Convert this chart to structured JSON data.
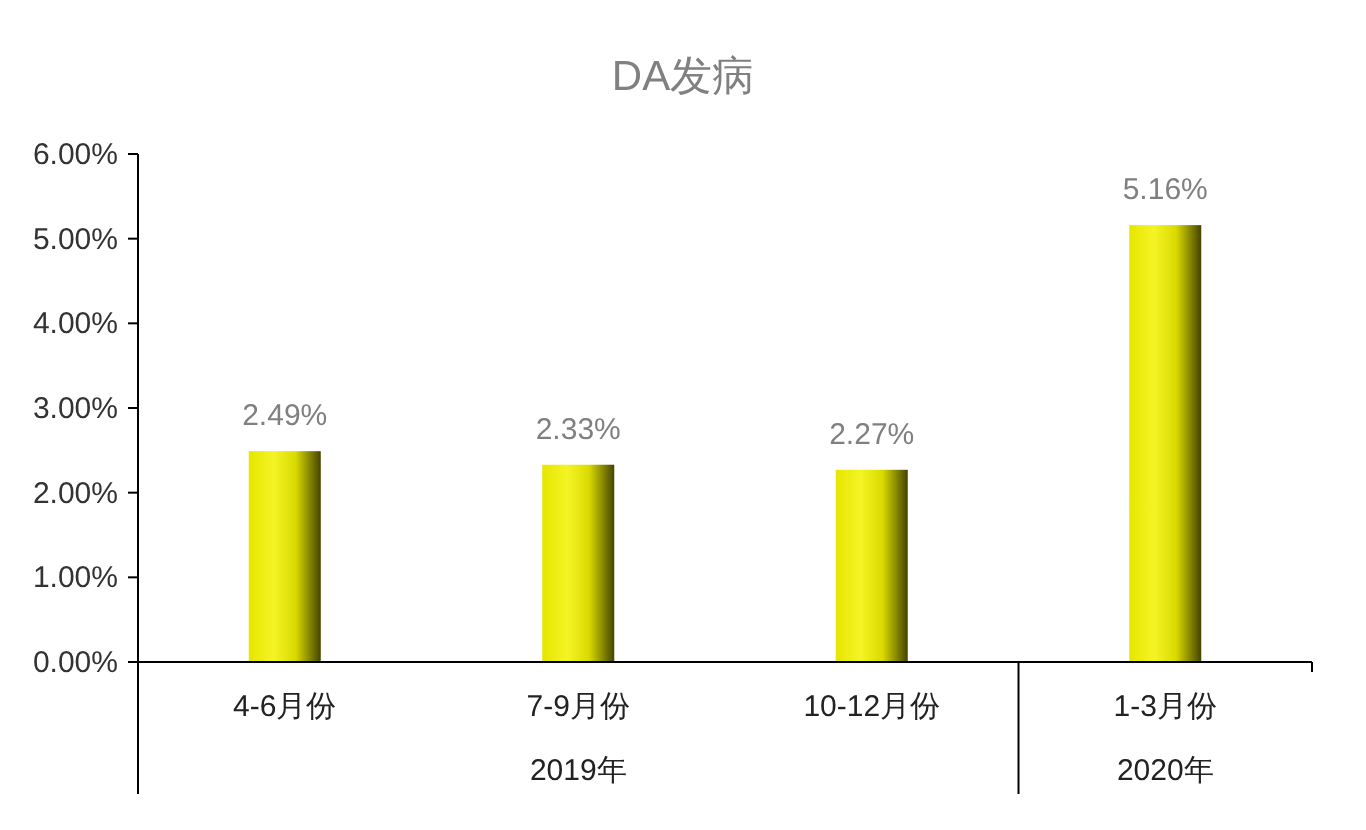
{
  "chart_data": {
    "type": "bar",
    "title": "DA发病",
    "categories": [
      "4-6月份",
      "7-9月份",
      "10-12月份",
      "1-3月份"
    ],
    "values": [
      2.49,
      2.33,
      2.27,
      5.16
    ],
    "color": "#f2f200",
    "value_labels": [
      "2.49%",
      "2.33%",
      "2.27%",
      "5.16%"
    ],
    "ylim": [
      0,
      6
    ],
    "yticks": [
      {
        "value": 0,
        "label": "0.00%"
      },
      {
        "value": 1,
        "label": "1.00%"
      },
      {
        "value": 2,
        "label": "2.00%"
      },
      {
        "value": 3,
        "label": "3.00%"
      },
      {
        "value": 4,
        "label": "4.00%"
      },
      {
        "value": 5,
        "label": "5.00%"
      },
      {
        "value": 6,
        "label": "6.00%"
      }
    ],
    "annotations": [
      "2019年",
      "2020年"
    ]
  }
}
